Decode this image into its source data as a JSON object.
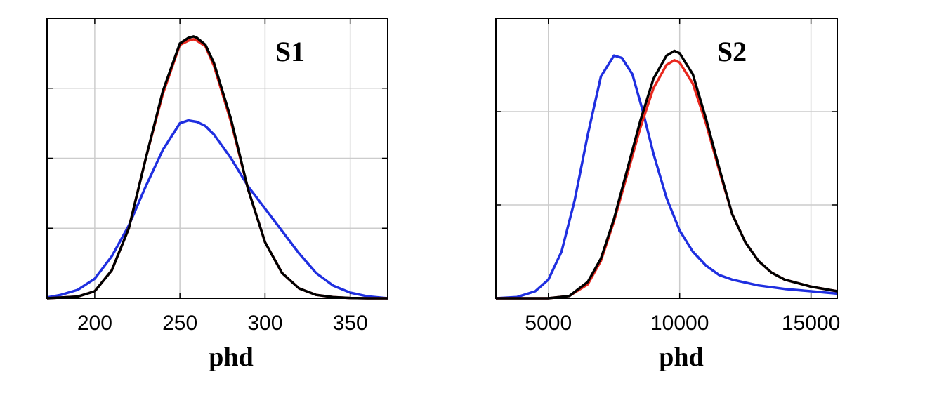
{
  "chart_data": [
    {
      "type": "line",
      "title": "S1",
      "xlabel": "phd",
      "ylabel": "",
      "xlim": [
        172,
        372
      ],
      "ylim": [
        0,
        1.0
      ],
      "x_ticks": [
        200,
        250,
        300,
        350
      ],
      "x_tick_labels": [
        "200",
        "250",
        "300",
        "350"
      ],
      "y_ticks": [
        0.25,
        0.5,
        0.75
      ],
      "grid": true,
      "series": [
        {
          "color": "#1f2fe0",
          "x": [
            172,
            180,
            190,
            200,
            210,
            220,
            230,
            240,
            250,
            255,
            260,
            265,
            270,
            280,
            290,
            300,
            310,
            320,
            330,
            340,
            350,
            360,
            372
          ],
          "y": [
            0.003,
            0.012,
            0.03,
            0.07,
            0.15,
            0.26,
            0.4,
            0.53,
            0.625,
            0.635,
            0.63,
            0.615,
            0.585,
            0.5,
            0.4,
            0.32,
            0.24,
            0.16,
            0.09,
            0.045,
            0.02,
            0.007,
            0.0
          ]
        },
        {
          "color": "#e8281e",
          "x": [
            172,
            190,
            200,
            210,
            220,
            230,
            240,
            250,
            255,
            258,
            260,
            265,
            270,
            280,
            290,
            300,
            310,
            320,
            330,
            340,
            350,
            360,
            372
          ],
          "y": [
            0.0,
            0.006,
            0.025,
            0.1,
            0.25,
            0.5,
            0.73,
            0.905,
            0.92,
            0.925,
            0.92,
            0.9,
            0.83,
            0.63,
            0.39,
            0.2,
            0.09,
            0.035,
            0.012,
            0.004,
            0.001,
            0.0,
            0.0
          ]
        },
        {
          "color": "#000000",
          "x": [
            172,
            190,
            200,
            210,
            220,
            230,
            240,
            250,
            255,
            258,
            260,
            265,
            270,
            280,
            290,
            300,
            310,
            320,
            330,
            340,
            350,
            360,
            372
          ],
          "y": [
            0.0,
            0.006,
            0.025,
            0.1,
            0.25,
            0.5,
            0.74,
            0.91,
            0.93,
            0.935,
            0.93,
            0.905,
            0.84,
            0.64,
            0.39,
            0.2,
            0.09,
            0.035,
            0.012,
            0.004,
            0.001,
            0.0,
            0.0
          ]
        }
      ]
    },
    {
      "type": "line",
      "title": "S2",
      "xlabel": "phd",
      "ylabel": "",
      "xlim": [
        3000,
        16000
      ],
      "ylim": [
        0,
        1.2
      ],
      "x_ticks": [
        5000,
        10000,
        15000
      ],
      "x_tick_labels": [
        "5000",
        "10000",
        "15000"
      ],
      "y_ticks": [
        0.4,
        0.8
      ],
      "grid": true,
      "series": [
        {
          "color": "#1f2fe0",
          "x": [
            3000,
            3800,
            4500,
            5000,
            5500,
            6000,
            6500,
            7000,
            7500,
            7800,
            8200,
            8600,
            9000,
            9500,
            10000,
            10500,
            11000,
            11500,
            12000,
            13000,
            14000,
            15000,
            16000
          ],
          "y": [
            0.0,
            0.005,
            0.03,
            0.08,
            0.2,
            0.42,
            0.7,
            0.95,
            1.04,
            1.03,
            0.96,
            0.8,
            0.62,
            0.43,
            0.29,
            0.2,
            0.14,
            0.1,
            0.08,
            0.055,
            0.04,
            0.03,
            0.02
          ]
        },
        {
          "color": "#e8281e",
          "x": [
            3000,
            5000,
            5800,
            6500,
            7000,
            7500,
            8000,
            8500,
            9000,
            9500,
            9800,
            10000,
            10500,
            11000,
            11500,
            12000,
            12500,
            13000,
            13500,
            14000,
            15000,
            16000
          ],
          "y": [
            0.0,
            0.0,
            0.01,
            0.06,
            0.16,
            0.33,
            0.53,
            0.73,
            0.9,
            1.0,
            1.02,
            1.01,
            0.92,
            0.75,
            0.55,
            0.36,
            0.24,
            0.16,
            0.11,
            0.08,
            0.05,
            0.03
          ]
        },
        {
          "color": "#000000",
          "x": [
            3000,
            5000,
            5800,
            6500,
            7000,
            7500,
            8000,
            8500,
            9000,
            9500,
            9800,
            10000,
            10500,
            11000,
            11500,
            12000,
            12500,
            13000,
            13500,
            14000,
            15000,
            16000
          ],
          "y": [
            0.0,
            0.0,
            0.01,
            0.07,
            0.17,
            0.34,
            0.55,
            0.76,
            0.94,
            1.04,
            1.06,
            1.05,
            0.96,
            0.77,
            0.56,
            0.36,
            0.24,
            0.16,
            0.11,
            0.08,
            0.05,
            0.03
          ]
        }
      ]
    }
  ]
}
